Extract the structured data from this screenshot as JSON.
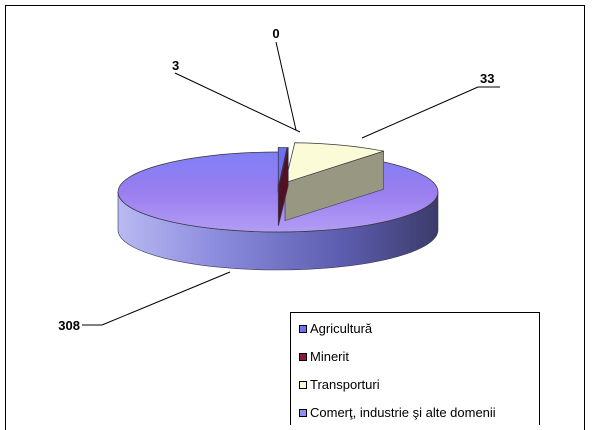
{
  "chart_data": {
    "type": "pie",
    "categories": [
      "Agricultură",
      "Minerit",
      "Transporturi",
      "Comerţ, industrie şi alte domenii"
    ],
    "values": [
      3,
      0,
      33,
      308
    ],
    "data_labels": [
      "3",
      "0",
      "33",
      "308"
    ],
    "colors": [
      "#6f6ff5",
      "#8b1a3a",
      "#fbfbd8",
      "#8f8ff8"
    ],
    "legend_position": "bottom-right",
    "three_d": true,
    "exploded": true
  }
}
